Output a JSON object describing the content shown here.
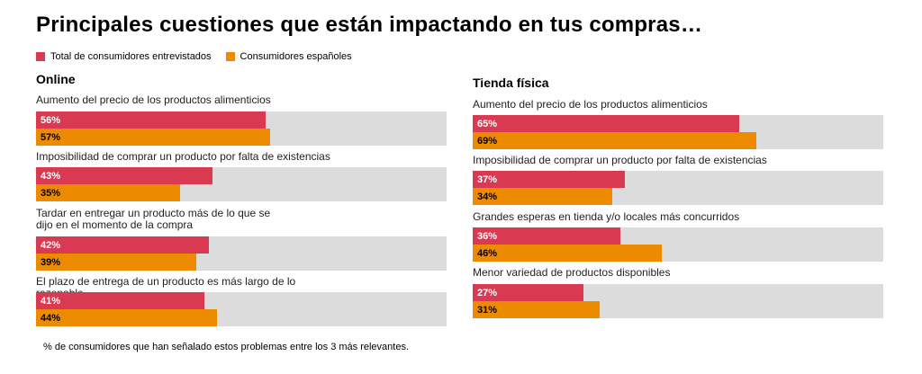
{
  "title": "Principales cuestiones que están impactando en tus compras…",
  "legend": [
    {
      "label": "Total de consumidores entrevistados",
      "color": "#d93a52"
    },
    {
      "label": "Consumidores españoles",
      "color": "#ec8a00"
    }
  ],
  "footnote": "% de consumidores que han señalado estos problemas entre los 3 más relevantes.",
  "chart_data": [
    {
      "type": "bar",
      "title": "Online",
      "xlim": [
        0,
        100
      ],
      "categories": [
        "Aumento del precio de los productos alimenticios",
        "Imposibilidad de comprar un producto por falta de existencias",
        "Tardar en entregar un producto más de lo que se dijo en el momento de la compra",
        "El plazo de entrega de un producto es más largo de lo razonable"
      ],
      "series": [
        {
          "name": "Total de consumidores entrevistados",
          "values": [
            56,
            43,
            42,
            41
          ],
          "labels": [
            "56%",
            "43%",
            "42%",
            "41%"
          ]
        },
        {
          "name": "Consumidores españoles",
          "values": [
            57,
            35,
            39,
            44
          ],
          "labels": [
            "57%",
            "35%",
            "39%",
            "44%"
          ]
        }
      ]
    },
    {
      "type": "bar",
      "title": "Tienda física",
      "xlim": [
        0,
        100
      ],
      "categories": [
        "Aumento del precio de los productos alimenticios",
        "Imposibilidad de comprar un producto por falta de existencias",
        "Grandes esperas en tienda y/o locales más concurridos",
        "Menor variedad de productos disponibles"
      ],
      "series": [
        {
          "name": "Total de consumidores entrevistados",
          "values": [
            65,
            37,
            36,
            27
          ],
          "labels": [
            "65%",
            "37%",
            "36%",
            "27%"
          ]
        },
        {
          "name": "Consumidores españoles",
          "values": [
            69,
            34,
            46,
            31
          ],
          "labels": [
            "69%",
            "34%",
            "46%",
            "31%"
          ]
        }
      ]
    }
  ]
}
